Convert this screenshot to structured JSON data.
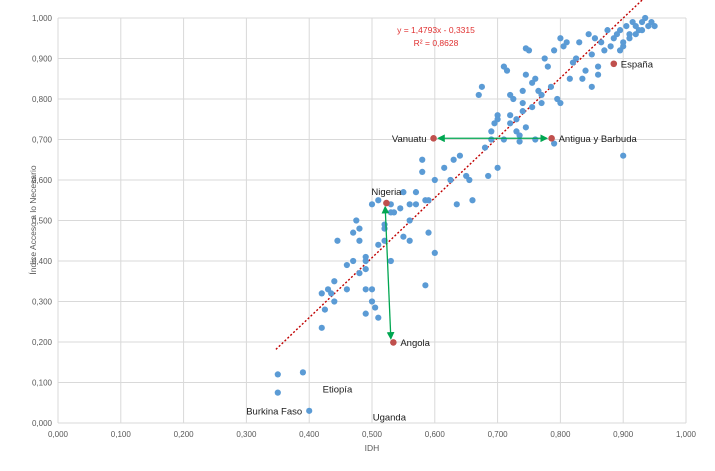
{
  "chart_data": {
    "type": "scatter",
    "xlabel": "IDH",
    "ylabel": "Índice Acceso a lo Necesario",
    "xlim": [
      0,
      1
    ],
    "ylim": [
      0,
      1
    ],
    "x_ticks": [
      "0,000",
      "0,100",
      "0,200",
      "0,300",
      "0,400",
      "0,500",
      "0,600",
      "0,700",
      "0,800",
      "0,900",
      "1,000"
    ],
    "y_ticks": [
      "0,000",
      "0,100",
      "0,200",
      "0,300",
      "0,400",
      "0,500",
      "0,600",
      "0,700",
      "0,800",
      "0,900",
      "1,000"
    ],
    "grid": true,
    "trendline": {
      "slope": 1.4793,
      "intercept": -0.3315,
      "x_range": [
        0.347,
        0.955
      ],
      "equation": "y = 1,4793x - 0,3315",
      "r2": "R² = 0,8628",
      "color": "#c00000"
    },
    "point_color": "#5b9bd5",
    "highlight_color": "#c0504d",
    "arrow_color": "#00a651",
    "points": [
      [
        0.35,
        0.12
      ],
      [
        0.35,
        0.075
      ],
      [
        0.39,
        0.125
      ],
      [
        0.4,
        0.03
      ],
      [
        0.425,
        0.28
      ],
      [
        0.42,
        0.235
      ],
      [
        0.42,
        0.32
      ],
      [
        0.43,
        0.33
      ],
      [
        0.435,
        0.32
      ],
      [
        0.44,
        0.35
      ],
      [
        0.445,
        0.45
      ],
      [
        0.46,
        0.39
      ],
      [
        0.47,
        0.47
      ],
      [
        0.475,
        0.5
      ],
      [
        0.48,
        0.48
      ],
      [
        0.48,
        0.45
      ],
      [
        0.49,
        0.41
      ],
      [
        0.49,
        0.38
      ],
      [
        0.49,
        0.4
      ],
      [
        0.5,
        0.3
      ],
      [
        0.5,
        0.33
      ],
      [
        0.51,
        0.26
      ],
      [
        0.51,
        0.55
      ],
      [
        0.51,
        0.44
      ],
      [
        0.52,
        0.45
      ],
      [
        0.52,
        0.49
      ],
      [
        0.52,
        0.48
      ],
      [
        0.53,
        0.4
      ],
      [
        0.53,
        0.52
      ],
      [
        0.535,
        0.52
      ],
      [
        0.545,
        0.53
      ],
      [
        0.55,
        0.46
      ],
      [
        0.56,
        0.45
      ],
      [
        0.56,
        0.5
      ],
      [
        0.56,
        0.54
      ],
      [
        0.57,
        0.54
      ],
      [
        0.58,
        0.62
      ],
      [
        0.58,
        0.65
      ],
      [
        0.585,
        0.55
      ],
      [
        0.59,
        0.47
      ],
      [
        0.6,
        0.42
      ],
      [
        0.49,
        0.27
      ],
      [
        0.48,
        0.37
      ],
      [
        0.49,
        0.33
      ],
      [
        0.585,
        0.34
      ],
      [
        0.505,
        0.285
      ],
      [
        0.625,
        0.6
      ],
      [
        0.63,
        0.65
      ],
      [
        0.635,
        0.54
      ],
      [
        0.64,
        0.66
      ],
      [
        0.65,
        0.61
      ],
      [
        0.66,
        0.55
      ],
      [
        0.67,
        0.81
      ],
      [
        0.675,
        0.83
      ],
      [
        0.68,
        0.68
      ],
      [
        0.69,
        0.72
      ],
      [
        0.69,
        0.7
      ],
      [
        0.695,
        0.74
      ],
      [
        0.7,
        0.76
      ],
      [
        0.7,
        0.63
      ],
      [
        0.7,
        0.75
      ],
      [
        0.71,
        0.7
      ],
      [
        0.71,
        0.88
      ],
      [
        0.715,
        0.87
      ],
      [
        0.72,
        0.76
      ],
      [
        0.72,
        0.74
      ],
      [
        0.725,
        0.8
      ],
      [
        0.73,
        0.75
      ],
      [
        0.73,
        0.72
      ],
      [
        0.735,
        0.71
      ],
      [
        0.74,
        0.82
      ],
      [
        0.74,
        0.79
      ],
      [
        0.74,
        0.77
      ],
      [
        0.745,
        0.86
      ],
      [
        0.75,
        0.92
      ],
      [
        0.755,
        0.78
      ],
      [
        0.76,
        0.7
      ],
      [
        0.76,
        0.85
      ],
      [
        0.765,
        0.82
      ],
      [
        0.77,
        0.81
      ],
      [
        0.77,
        0.79
      ],
      [
        0.775,
        0.9
      ],
      [
        0.78,
        0.88
      ],
      [
        0.785,
        0.83
      ],
      [
        0.79,
        0.92
      ],
      [
        0.795,
        0.8
      ],
      [
        0.8,
        0.95
      ],
      [
        0.8,
        0.79
      ],
      [
        0.805,
        0.93
      ],
      [
        0.81,
        0.94
      ],
      [
        0.815,
        0.85
      ],
      [
        0.82,
        0.89
      ],
      [
        0.825,
        0.9
      ],
      [
        0.83,
        0.94
      ],
      [
        0.835,
        0.85
      ],
      [
        0.84,
        0.87
      ],
      [
        0.845,
        0.96
      ],
      [
        0.85,
        0.91
      ],
      [
        0.855,
        0.95
      ],
      [
        0.86,
        0.88
      ],
      [
        0.865,
        0.94
      ],
      [
        0.87,
        0.92
      ],
      [
        0.875,
        0.97
      ],
      [
        0.88,
        0.93
      ],
      [
        0.885,
        0.95
      ],
      [
        0.89,
        0.96
      ],
      [
        0.895,
        0.97
      ],
      [
        0.9,
        0.94
      ],
      [
        0.905,
        0.98
      ],
      [
        0.91,
        0.96
      ],
      [
        0.915,
        0.99
      ],
      [
        0.92,
        0.98
      ],
      [
        0.925,
        0.97
      ],
      [
        0.93,
        0.99
      ],
      [
        0.935,
        1.0
      ],
      [
        0.94,
        0.98
      ],
      [
        0.945,
        0.99
      ],
      [
        0.95,
        0.98
      ],
      [
        0.9,
        0.66
      ],
      [
        0.79,
        0.69
      ],
      [
        0.745,
        0.73
      ],
      [
        0.72,
        0.81
      ],
      [
        0.755,
        0.84
      ],
      [
        0.86,
        0.86
      ],
      [
        0.85,
        0.83
      ],
      [
        0.9,
        0.93
      ],
      [
        0.91,
        0.95
      ],
      [
        0.895,
        0.92
      ],
      [
        0.92,
        0.96
      ],
      [
        0.93,
        0.97
      ],
      [
        0.745,
        0.925
      ],
      [
        0.735,
        0.695
      ],
      [
        0.685,
        0.61
      ],
      [
        0.655,
        0.6
      ],
      [
        0.615,
        0.63
      ],
      [
        0.59,
        0.55
      ],
      [
        0.6,
        0.6
      ],
      [
        0.57,
        0.57
      ],
      [
        0.55,
        0.57
      ],
      [
        0.53,
        0.54
      ],
      [
        0.5,
        0.54
      ],
      [
        0.47,
        0.4
      ],
      [
        0.46,
        0.33
      ],
      [
        0.44,
        0.3
      ]
    ],
    "highlights": [
      {
        "name": "España",
        "x": 0.885,
        "y": 0.887,
        "label_side": "right"
      },
      {
        "name": "Vanuatu",
        "x": 0.598,
        "y": 0.703,
        "label_side": "left"
      },
      {
        "name": "Antigua y Barbuda",
        "x": 0.786,
        "y": 0.703,
        "label_side": "right"
      },
      {
        "name": "Nigeria",
        "x": 0.523,
        "y": 0.543,
        "label_side": "top"
      },
      {
        "name": "Angola",
        "x": 0.534,
        "y": 0.199,
        "label_side": "right"
      }
    ],
    "labels": [
      {
        "name": "Burkina Faso",
        "x": 0.4,
        "y": 0.03,
        "label_side": "left"
      },
      {
        "name": "Etiopía",
        "x": 0.445,
        "y": 0.055,
        "label_side": "top"
      },
      {
        "name": "Uganda",
        "x": 0.49,
        "y": 0.015,
        "label_side": "right"
      }
    ]
  }
}
